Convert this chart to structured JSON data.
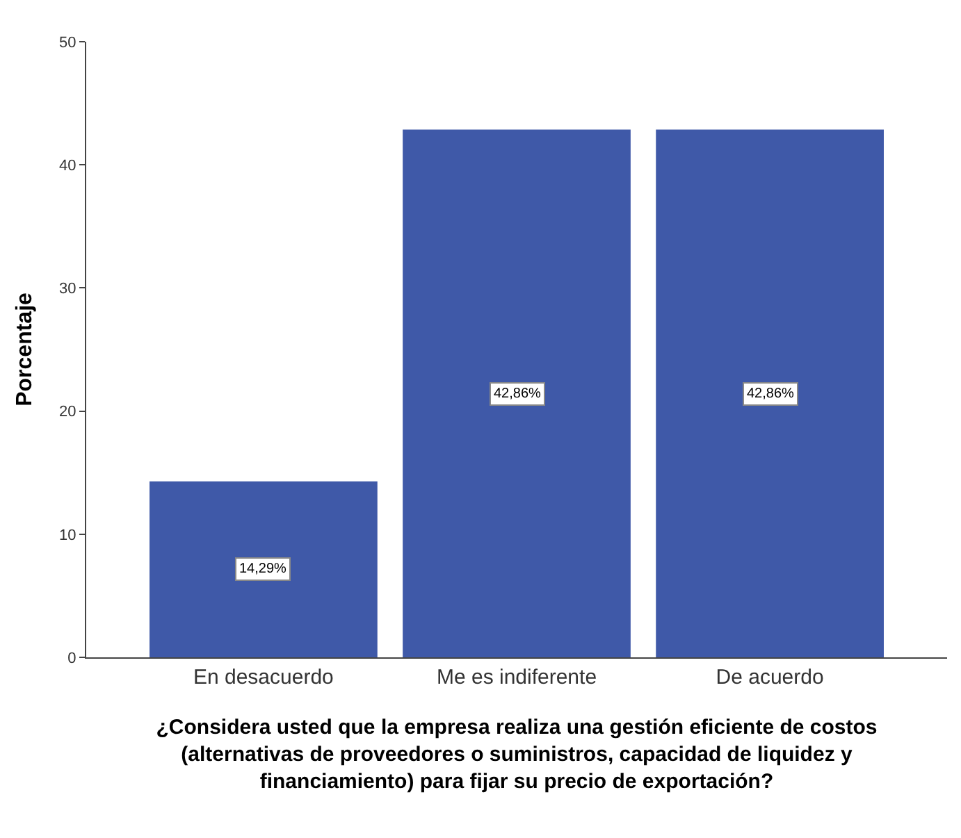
{
  "chart_data": {
    "type": "bar",
    "xlabel": "¿Considera usted que la empresa realiza una gestión eficiente de costos (alternativas de proveedores o suministros, capacidad de liquidez y financiamiento) para fijar su precio de exportación?",
    "ylabel": "Porcentaje",
    "categories": [
      "En desacuerdo",
      "Me es indiferente",
      "De acuerdo"
    ],
    "values": [
      14.29,
      42.86,
      42.86
    ],
    "value_labels": [
      "14,29%",
      "42,86%",
      "42,86%"
    ],
    "color": "#3f59a8",
    "ylim": [
      0,
      50
    ],
    "yticks": [
      0,
      10,
      20,
      30,
      40,
      50
    ]
  }
}
